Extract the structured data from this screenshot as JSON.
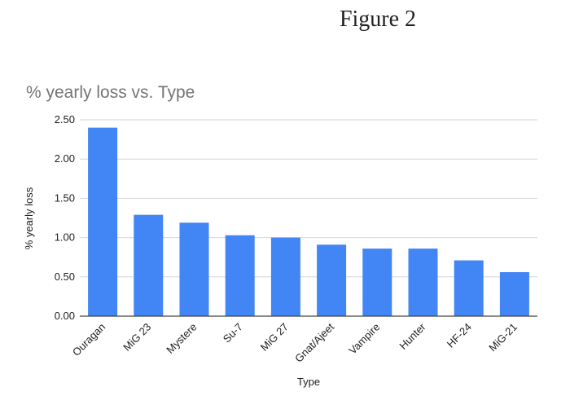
{
  "figure_label": "Figure 2",
  "colors": {
    "bar": "#4285f4",
    "grid": "#d6d6d6",
    "axis": "#444444"
  },
  "chart_data": {
    "type": "bar",
    "title": "% yearly loss vs. Type",
    "xlabel": "Type",
    "ylabel": "% yearly loss",
    "categories": [
      "Ouragan",
      "MiG 23",
      "Mystere",
      "Su-7",
      "MiG 27",
      "Gnat/Ajeet",
      "Vampire",
      "Hunter",
      "HF-24",
      "MiG-21"
    ],
    "values": [
      2.4,
      1.29,
      1.19,
      1.03,
      1.0,
      0.91,
      0.86,
      0.86,
      0.71,
      0.56
    ],
    "ylim": [
      0,
      2.5
    ],
    "yticks": [
      "0.00",
      "0.50",
      "1.00",
      "1.50",
      "2.00",
      "2.50"
    ],
    "grid": true,
    "legend": "none"
  }
}
